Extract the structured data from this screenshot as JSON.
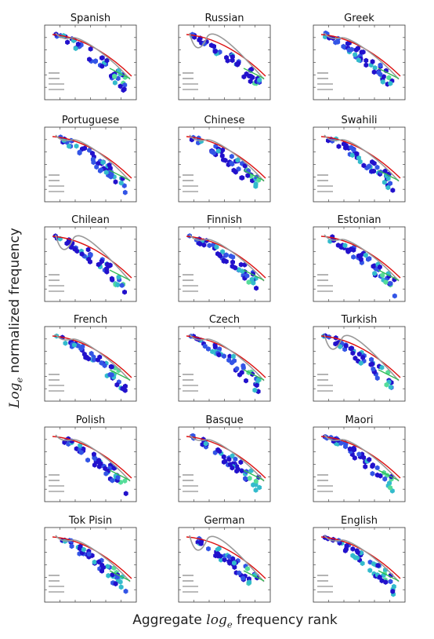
{
  "ylabel": {
    "log": "Log",
    "sub": "e",
    "rest": " normalized frequency"
  },
  "xlabel": {
    "pre": "Aggregate ",
    "log": "log",
    "sub": "e",
    "rest": " frequency rank"
  },
  "colors": {
    "hex_dark": "#2211cc",
    "hex_mid": "#3355e6",
    "hex_light": "#33bbcc",
    "hex_teal": "#55dd99",
    "fit_red": "#dd1111",
    "fit_gray": "#999999",
    "fit_green": "#33bb55"
  },
  "chart_data": [
    {
      "type": "scatter",
      "title": "Spanish",
      "style": "hexbin"
    },
    {
      "type": "scatter",
      "title": "Russian",
      "style": "hexbin"
    },
    {
      "type": "scatter",
      "title": "Greek",
      "style": "hexbin"
    },
    {
      "type": "scatter",
      "title": "Portuguese",
      "style": "hexbin"
    },
    {
      "type": "scatter",
      "title": "Chinese",
      "style": "hexbin"
    },
    {
      "type": "scatter",
      "title": "Swahili",
      "style": "hexbin"
    },
    {
      "type": "scatter",
      "title": "Chilean",
      "style": "hexbin"
    },
    {
      "type": "scatter",
      "title": "Finnish",
      "style": "hexbin"
    },
    {
      "type": "scatter",
      "title": "Estonian",
      "style": "hexbin"
    },
    {
      "type": "scatter",
      "title": "French",
      "style": "hexbin"
    },
    {
      "type": "scatter",
      "title": "Czech",
      "style": "hexbin"
    },
    {
      "type": "scatter",
      "title": "Turkish",
      "style": "hexbin"
    },
    {
      "type": "scatter",
      "title": "Polish",
      "style": "hexbin"
    },
    {
      "type": "scatter",
      "title": "Basque",
      "style": "hexbin"
    },
    {
      "type": "scatter",
      "title": "Maori",
      "style": "hexbin"
    },
    {
      "type": "scatter",
      "title": "Tok Pisin",
      "style": "hexbin"
    },
    {
      "type": "scatter",
      "title": "German",
      "style": "hexbin"
    },
    {
      "type": "scatter",
      "title": "English",
      "style": "hexbin"
    }
  ]
}
